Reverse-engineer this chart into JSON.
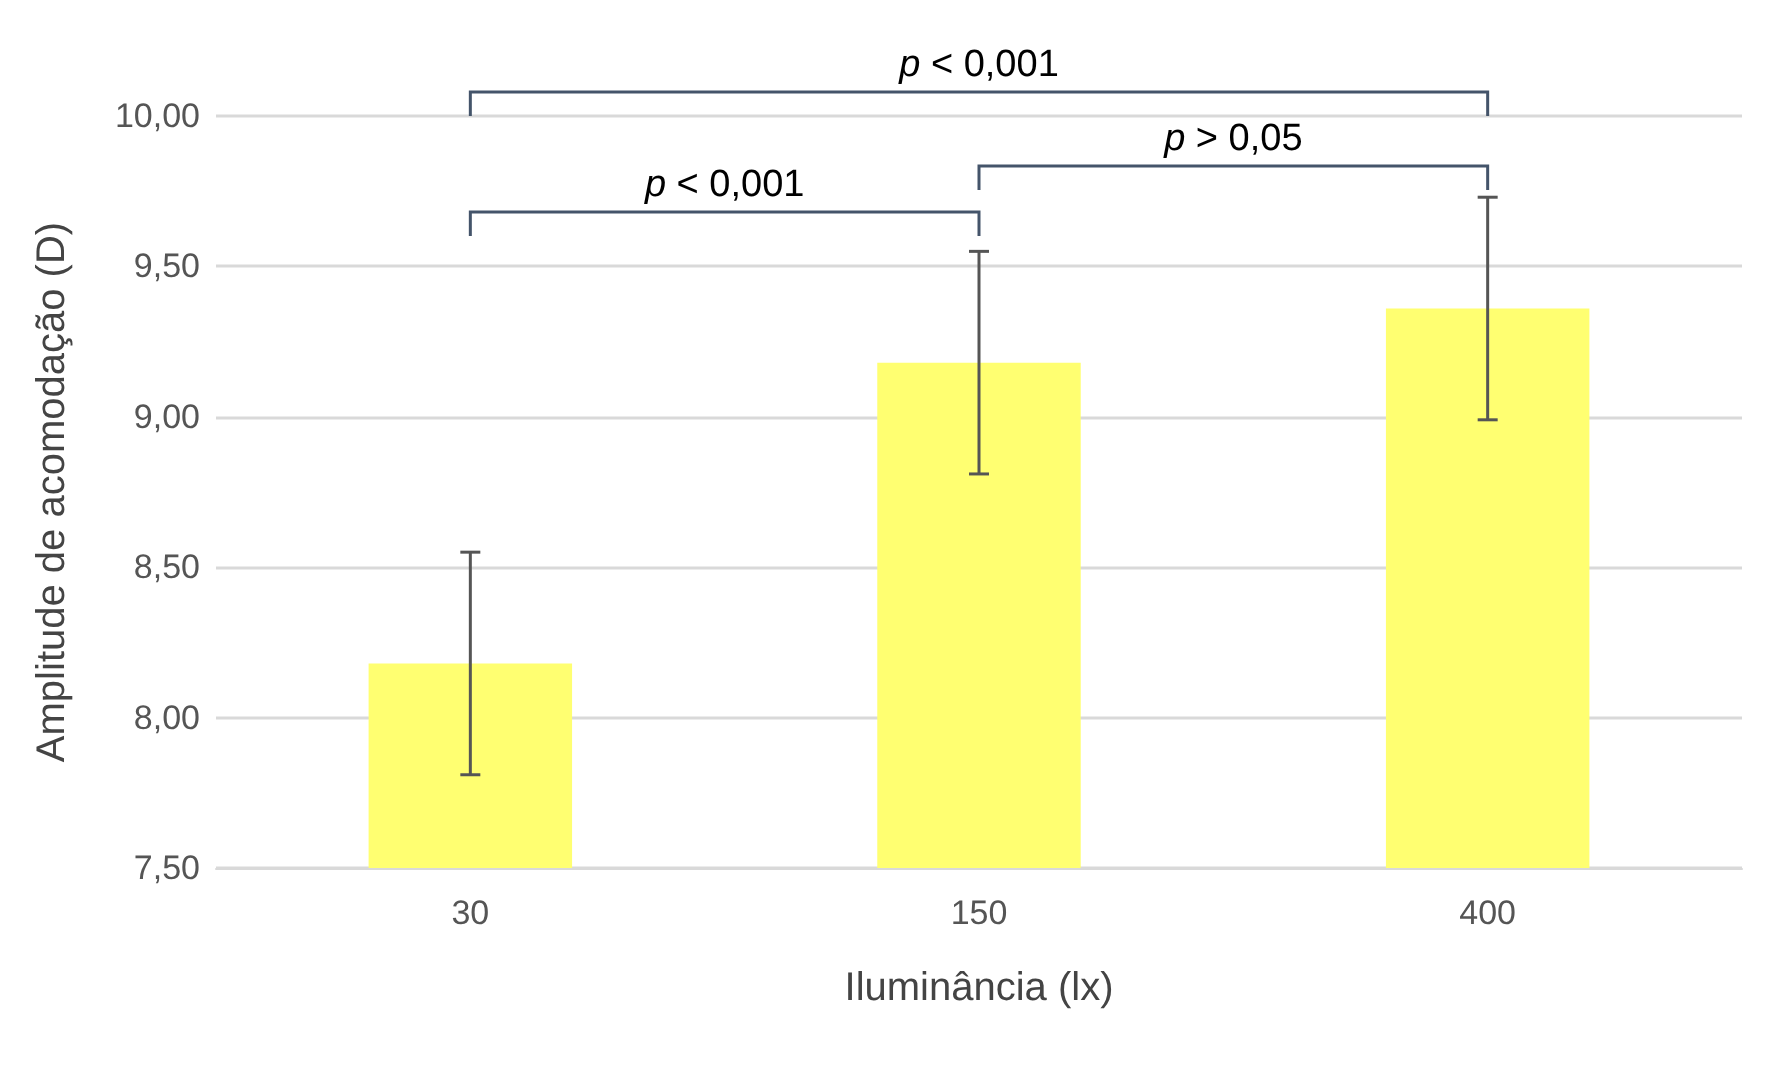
{
  "chart_data": {
    "type": "bar",
    "xlabel": "Iluminância (lx)",
    "ylabel": "Amplitude de acomodação (D)",
    "categories": [
      "30",
      "150",
      "400"
    ],
    "values": [
      8.18,
      9.18,
      9.36
    ],
    "errors": [
      0.37,
      0.37,
      0.37
    ],
    "color": "#ffff71",
    "ylim": [
      7.5,
      10
    ],
    "yticks": [
      {
        "value": 7.5,
        "label": "7,50"
      },
      {
        "value": 8,
        "label": "8,00"
      },
      {
        "value": 8.5,
        "label": "8,50"
      },
      {
        "value": 9,
        "label": "9,00"
      },
      {
        "value": 9.5,
        "label": "9,50"
      },
      {
        "value": 10,
        "label": "10,00"
      }
    ],
    "grid": "y",
    "annotations": [
      "p < 0,001",
      "p > 0,05",
      "p < 0,001"
    ]
  }
}
